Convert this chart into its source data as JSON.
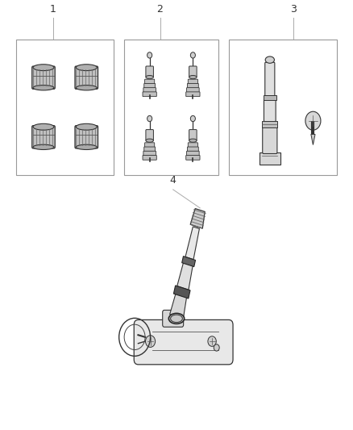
{
  "background_color": "#ffffff",
  "fig_width": 4.38,
  "fig_height": 5.33,
  "dpi": 100,
  "line_color": "#444444",
  "text_color": "#333333",
  "border_color": "#999999",
  "label_fontsize": 9
}
